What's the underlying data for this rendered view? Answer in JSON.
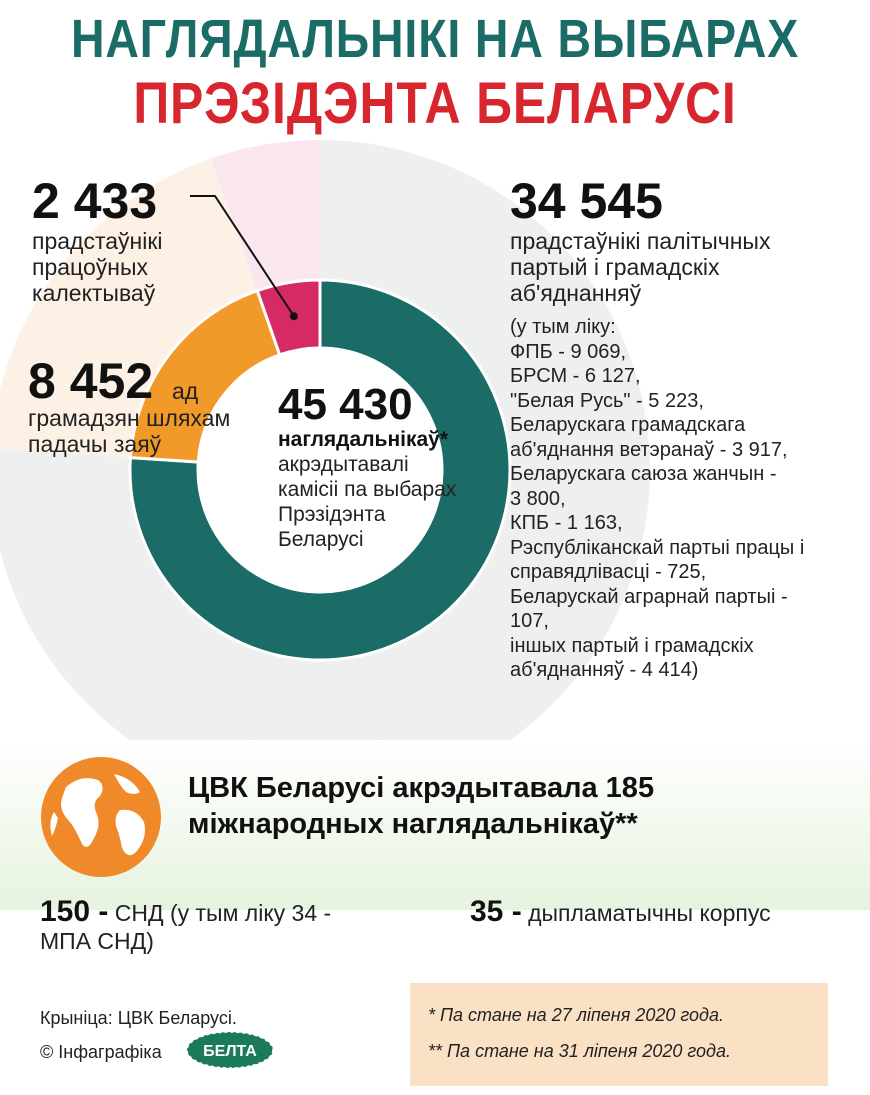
{
  "title_line1": "НАГЛЯДАЛЬНІКІ НА ВЫБАРАХ",
  "title_line2": "ПРЭЗІДЭНТА БЕЛАРУСІ",
  "colors": {
    "teal": "#1b6b66",
    "red": "#d8262f",
    "orange": "#f29a29",
    "pink": "#d52a63"
  },
  "chart_data": {
    "type": "pie",
    "total": "45 430",
    "total_label": "наглядальнікаў*",
    "total_desc": "акрэдытавалі\nкамісіі па выбарах\nПрэзідэнта\nБеларусі",
    "slices": [
      {
        "value": 34545,
        "color": "#1b6b66",
        "value_text": "34 545",
        "label": "прадстаўнікі палітычных\nпартый і грамадскіх\nаб'яднанняў"
      },
      {
        "value": 8452,
        "color": "#f29a29",
        "value_text": "8 452",
        "value_suffix": "ад",
        "label": "грамадзян шляхам\nпадачы заяў"
      },
      {
        "value": 2433,
        "color": "#d52a63",
        "value_text": "2 433",
        "label": "прадстаўнікі\nпрацоўных\nкалектываў"
      }
    ],
    "breakdown": "(у тым ліку:\nФПБ - 9 069,\nБРСМ - 6 127,\n\"Белая Русь\" - 5 223,\nБеларускага грамадскага\nаб'яднання ветэранаў - 3 917,\nБеларускага саюза жанчын -\n3 800,\nКПБ - 1 163,\nРэспубліканскай партыі працы і\nсправядлівасці - 725,\nБеларускай аграрнай партыі -\n107,\nіншых партый і грамадскіх\nаб'яднанняў - 4 414)"
  },
  "international": {
    "headline": "ЦВК Беларусі акрэдытавала 185\nміжнародных наглядальнікаў**",
    "cis_number": "150 -",
    "cis_text": " СНД (у тым ліку 34 - МПА СНД)",
    "dip_number": "35 -",
    "dip_text": " дыпламатычны корпус"
  },
  "footer": {
    "source": "Крыніца: ЦВК Беларусі.",
    "infographic": "© Інфаграфіка",
    "logo_text": "БЕЛТА",
    "note1": "* Па стане на 27 ліпеня 2020 года.",
    "note2": "** Па стане на 31 ліпеня 2020 года."
  }
}
